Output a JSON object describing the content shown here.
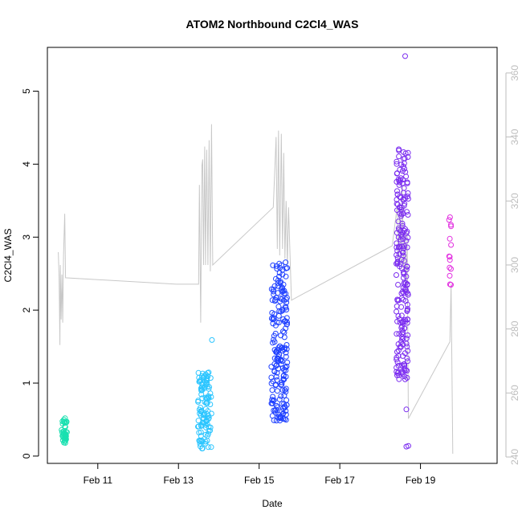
{
  "chart_data": {
    "type": "scatter",
    "title": "ATOM2 Northbound C2Cl4_WAS",
    "xlabel": "Date",
    "ylabel": "C2Cl4_WAS",
    "x_ticks": [
      {
        "label": "Feb 11",
        "day": 11
      },
      {
        "label": "Feb 13",
        "day": 13
      },
      {
        "label": "Feb 15",
        "day": 15
      },
      {
        "label": "Feb 17",
        "day": 17
      },
      {
        "label": "Feb 19",
        "day": 19
      }
    ],
    "xlim_day": [
      9.75,
      20.9
    ],
    "ylim": [
      -0.1,
      5.6
    ],
    "y_ticks": [
      0,
      1,
      2,
      3,
      4,
      5
    ],
    "right_axis": {
      "ylim": [
        238,
        368
      ],
      "ticks": [
        240,
        260,
        280,
        300,
        320,
        340,
        360
      ],
      "color": "#bdbdbd"
    },
    "grid": false,
    "point_style": "open-circle",
    "series": [
      {
        "color": "#19e0b0",
        "center": 10.17,
        "spread": 0.07,
        "count": 40,
        "ymin": 0.18,
        "ymax": 0.52
      },
      {
        "color": "#2bc5ff",
        "center": 13.65,
        "spread": 0.17,
        "count": 110,
        "ymin": 0.1,
        "ymax": 1.15,
        "extra": [
          {
            "day": 13.83,
            "y": 1.59
          }
        ]
      },
      {
        "color": "#1f40ff",
        "center": 15.5,
        "spread": 0.2,
        "count": 190,
        "ymin": 0.48,
        "ymax": 2.66
      },
      {
        "color": "#7b2cf0",
        "center": 18.55,
        "spread": 0.15,
        "count": 210,
        "ymin": 1.05,
        "ymax": 4.3,
        "extra": [
          {
            "day": 18.62,
            "y": 5.48
          },
          {
            "day": 18.65,
            "y": 0.64
          },
          {
            "day": 18.65,
            "y": 0.13
          },
          {
            "day": 18.7,
            "y": 0.14
          }
        ]
      },
      {
        "color": "#e22fe0",
        "center": 19.73,
        "spread": 0.03,
        "count": 14,
        "ymin": 2.28,
        "ymax": 3.4
      }
    ],
    "altitude_line": {
      "color": "#c8c8c8",
      "points": [
        [
          10.02,
          304
        ],
        [
          10.04,
          296
        ],
        [
          10.06,
          275
        ],
        [
          10.07,
          300
        ],
        [
          10.09,
          283
        ],
        [
          10.11,
          297
        ],
        [
          10.13,
          282
        ],
        [
          10.15,
          303
        ],
        [
          10.18,
          316
        ],
        [
          10.2,
          296
        ],
        [
          12.95,
          294
        ],
        [
          13.5,
          294
        ],
        [
          13.52,
          325
        ],
        [
          13.55,
          282
        ],
        [
          13.58,
          331
        ],
        [
          13.6,
          333
        ],
        [
          13.62,
          300
        ],
        [
          13.65,
          337
        ],
        [
          13.67,
          300
        ],
        [
          13.7,
          336
        ],
        [
          13.73,
          300
        ],
        [
          13.76,
          339
        ],
        [
          13.79,
          298
        ],
        [
          13.82,
          344
        ],
        [
          13.85,
          300
        ],
        [
          15.35,
          318
        ],
        [
          15.42,
          340
        ],
        [
          15.45,
          305
        ],
        [
          15.48,
          342
        ],
        [
          15.51,
          303
        ],
        [
          15.55,
          341
        ],
        [
          15.58,
          305
        ],
        [
          15.61,
          335
        ],
        [
          15.64,
          302
        ],
        [
          15.67,
          320
        ],
        [
          15.7,
          300
        ],
        [
          15.73,
          318
        ],
        [
          15.8,
          289
        ],
        [
          18.3,
          306
        ],
        [
          18.42,
          318
        ],
        [
          18.45,
          300
        ],
        [
          18.48,
          318
        ],
        [
          18.52,
          300
        ],
        [
          18.55,
          325
        ],
        [
          18.58,
          298
        ],
        [
          18.61,
          311
        ],
        [
          18.64,
          290
        ],
        [
          18.67,
          310
        ],
        [
          18.7,
          252
        ],
        [
          19.73,
          276
        ],
        [
          19.76,
          294
        ],
        [
          19.8,
          241
        ]
      ]
    }
  }
}
